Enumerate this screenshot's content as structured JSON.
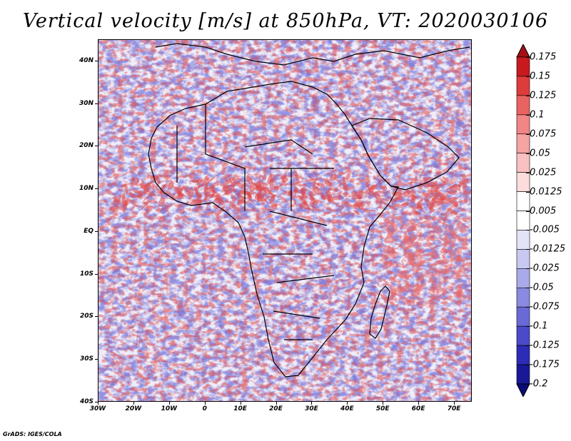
{
  "title": "Vertical velocity [m/s] at 850hPa, VT: 2020030106",
  "footer": "GrADS: IGES/COLA",
  "map": {
    "lon_range": [
      -30,
      75
    ],
    "lat_range": [
      -40,
      45
    ],
    "lat_labels": [
      "40N",
      "30N",
      "20N",
      "10N",
      "EQ",
      "10S",
      "20S",
      "30S",
      "40S"
    ],
    "lat_values": [
      40,
      30,
      20,
      10,
      0,
      -10,
      -20,
      -30,
      -40
    ],
    "lon_labels": [
      "30W",
      "20W",
      "10W",
      "0",
      "10E",
      "20E",
      "30E",
      "40E",
      "50E",
      "60E",
      "70E"
    ],
    "lon_values": [
      -30,
      -20,
      -10,
      0,
      10,
      20,
      30,
      40,
      50,
      60,
      70
    ]
  },
  "colorbar": {
    "labels": [
      "0.175",
      "0.15",
      "0.125",
      "0.1",
      "0.075",
      "0.05",
      "0.025",
      "0.0125",
      "0.005",
      "-0.005",
      "-0.0125",
      "-0.025",
      "-0.05",
      "-0.075",
      "-0.1",
      "-0.125",
      "-0.175",
      "-0.2"
    ],
    "colors": [
      "#a50f15",
      "#c8191f",
      "#de3c3c",
      "#ea6363",
      "#f28585",
      "#f6a3a3",
      "#f9c1c1",
      "#fcdcdc",
      "#ffffff",
      "#ffffff",
      "#e3e3f8",
      "#c8c8f1",
      "#aaaaea",
      "#8a8ae0",
      "#6a6ad6",
      "#4b4bc9",
      "#2c2cb6",
      "#191997",
      "#0c0c78"
    ]
  },
  "legend_colors": {
    "ascent": "#de3c3c",
    "descent": "#5a5ad0",
    "coastline": "#000000"
  }
}
